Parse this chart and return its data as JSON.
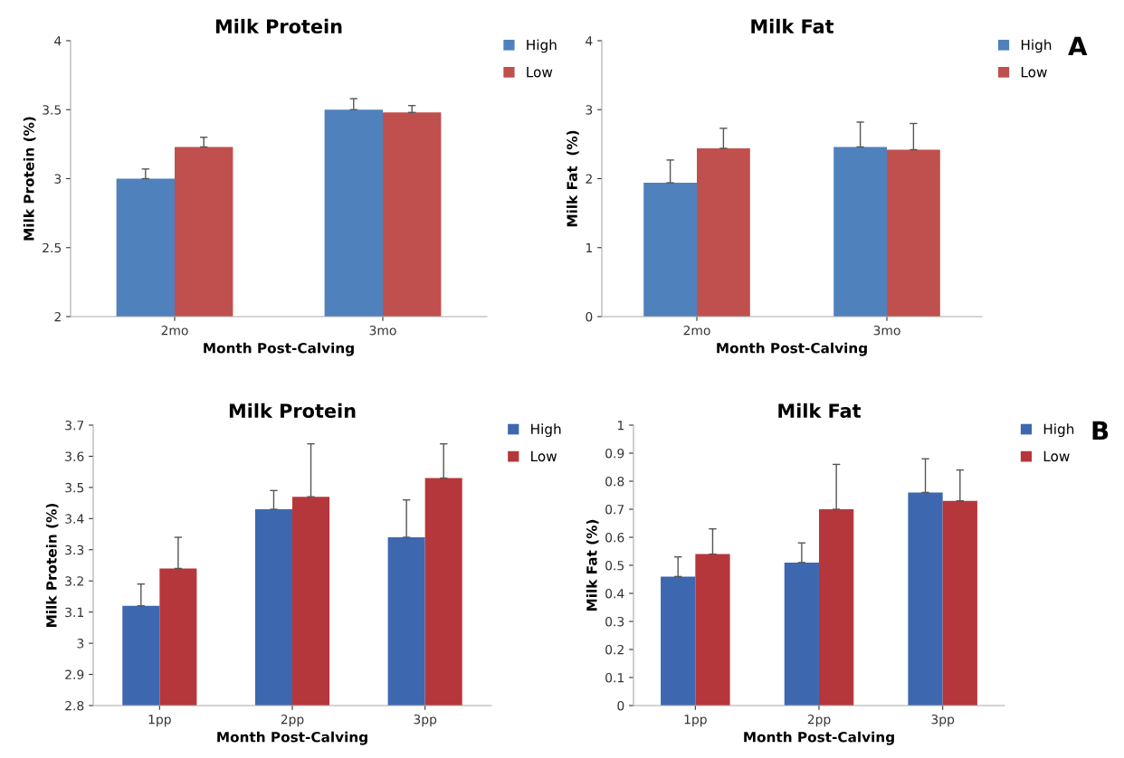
{
  "chart_data": [
    {
      "type": "bar",
      "title": "Milk Protein",
      "xlabel": "Month Post-Calving",
      "ylabel": "Milk Protein (%)",
      "categories": [
        "2mo",
        "3mo"
      ],
      "ylim": [
        2,
        4
      ],
      "yticks": [
        2,
        2.5,
        3,
        3.5,
        4
      ],
      "grid": false,
      "legend": "top right",
      "series": [
        {
          "name": "High",
          "color": "#4f81bd",
          "values": [
            3.0,
            3.5
          ],
          "errors": [
            [
              3.0,
              3.07
            ],
            [
              3.5,
              3.58
            ]
          ]
        },
        {
          "name": "Low",
          "color": "#c0504d",
          "values": [
            3.23,
            3.48
          ],
          "errors": [
            [
              3.23,
              3.3
            ],
            [
              3.48,
              3.53
            ]
          ]
        }
      ]
    },
    {
      "type": "bar",
      "title": "Milk Fat",
      "xlabel": "Month Post-Calving",
      "ylabel": "Milk Fat  (%)",
      "categories": [
        "2mo",
        "3mo"
      ],
      "ylim": [
        0,
        4
      ],
      "yticks": [
        0,
        1,
        2,
        3,
        4
      ],
      "grid": false,
      "legend": "top right",
      "annotations": [
        "A"
      ],
      "series": [
        {
          "name": "High",
          "color": "#4f81bd",
          "values": [
            1.94,
            2.46
          ],
          "errors": [
            [
              1.94,
              2.27
            ],
            [
              2.46,
              2.82
            ]
          ]
        },
        {
          "name": "Low",
          "color": "#c0504d",
          "values": [
            2.44,
            2.42
          ],
          "errors": [
            [
              2.44,
              2.73
            ],
            [
              2.42,
              2.8
            ]
          ]
        }
      ]
    },
    {
      "type": "bar",
      "title": "Milk Protein",
      "xlabel": "Month Post-Calving",
      "ylabel": "Milk Protein (%)",
      "categories": [
        "1pp",
        "2pp",
        "3pp"
      ],
      "ylim": [
        2.8,
        3.7
      ],
      "yticks": [
        2.8,
        2.9,
        3,
        3.1,
        3.2,
        3.3,
        3.4,
        3.5,
        3.6,
        3.7
      ],
      "grid": false,
      "legend": "top right",
      "series": [
        {
          "name": "High",
          "color": "#3d68b0",
          "values": [
            3.12,
            3.43,
            3.34
          ],
          "errors": [
            [
              3.12,
              3.19
            ],
            [
              3.43,
              3.49
            ],
            [
              3.34,
              3.46
            ]
          ]
        },
        {
          "name": "Low",
          "color": "#b5373b",
          "values": [
            3.24,
            3.47,
            3.53
          ],
          "errors": [
            [
              3.24,
              3.34
            ],
            [
              3.47,
              3.64
            ],
            [
              3.53,
              3.64
            ]
          ]
        }
      ]
    },
    {
      "type": "bar",
      "title": "Milk Fat",
      "xlabel": "Month Post-Calving",
      "ylabel": "Milk Fat (%)",
      "categories": [
        "1pp",
        "2pp",
        "3pp"
      ],
      "ylim": [
        0,
        1
      ],
      "yticks": [
        0,
        0.1,
        0.2,
        0.3,
        0.4,
        0.5,
        0.6,
        0.7,
        0.8,
        0.9,
        1
      ],
      "grid": false,
      "legend": "top right",
      "annotations": [
        "B"
      ],
      "series": [
        {
          "name": "High",
          "color": "#3d68b0",
          "values": [
            0.46,
            0.51,
            0.76
          ],
          "errors": [
            [
              0.46,
              0.53
            ],
            [
              0.51,
              0.58
            ],
            [
              0.76,
              0.88
            ]
          ]
        },
        {
          "name": "Low",
          "color": "#b5373b",
          "values": [
            0.54,
            0.7,
            0.73
          ],
          "errors": [
            [
              0.54,
              0.63
            ],
            [
              0.7,
              0.86
            ],
            [
              0.73,
              0.84
            ]
          ]
        }
      ]
    }
  ]
}
